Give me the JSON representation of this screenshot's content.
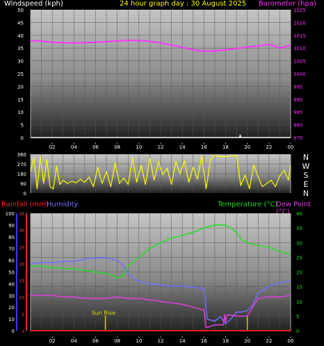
{
  "header": {
    "wind_label": "Windspeed (kph)",
    "title": "24 hour graph day : 30 August 2025",
    "baro_label": "Barometer (hpa)"
  },
  "colors": {
    "wind_label": "#ffffff",
    "title": "#ffff00",
    "baro": "#ff33ff",
    "direction": "#ffff00",
    "rain": "#ff2020",
    "humidity": "#7070ff",
    "temperature": "#22dd22",
    "dewpoint": "#e040e0",
    "sunrise": "#cccc00",
    "sunrise_label": "#dddd00"
  },
  "x_ticks": [
    "02",
    "04",
    "06",
    "08",
    "10",
    "12",
    "14",
    "16",
    "18",
    "20",
    "22",
    "00"
  ],
  "panel1": {
    "wind_ticks": [
      0,
      5,
      10,
      15,
      20,
      25,
      30,
      35,
      40,
      45,
      50
    ],
    "baro_ticks": [
      975,
      980,
      985,
      990,
      995,
      1000,
      1005,
      1010,
      1015,
      1020,
      1025
    ]
  },
  "panel2": {
    "dir_ticks": [
      0,
      90,
      180,
      270,
      360
    ],
    "compass": [
      "N",
      "W",
      "S",
      "E",
      "N"
    ]
  },
  "panel3": {
    "labels": {
      "rain": "Rainfall (mm)",
      "humidity": "Humidity",
      "temperature": "Temperature (°C)",
      "dewpoint": "Dew Point (°C)"
    },
    "hum_ticks": [
      0,
      10,
      20,
      30,
      40,
      50,
      60,
      70,
      80,
      90,
      100
    ],
    "rain_ticks": [
      0,
      5,
      10,
      15,
      20,
      25,
      30,
      35
    ],
    "temp_ticks": [
      0,
      5,
      10,
      15,
      20,
      25,
      30,
      35,
      40
    ],
    "sunrise_label": "Sun Rise"
  },
  "chart_data": [
    {
      "type": "line",
      "title": "24 hour graph day : 30 August 2025",
      "x_unit": "hour of day",
      "y_left_label": "Windspeed (kph)",
      "y_left_range": [
        0,
        50
      ],
      "y_right_label": "Barometer (hpa)",
      "y_right_range": [
        975,
        1025
      ],
      "series": [
        {
          "name": "Barometer (hpa)",
          "axis": "right",
          "x": [
            0,
            1,
            2,
            3,
            4,
            5,
            6,
            7,
            8,
            9,
            10,
            11,
            12,
            13,
            14,
            15,
            16,
            17,
            18,
            19,
            20,
            21,
            22,
            22.5,
            23,
            24
          ],
          "values": [
            1013,
            1012.7,
            1012.3,
            1012.1,
            1012,
            1012.1,
            1012.3,
            1012.5,
            1012.8,
            1013,
            1013,
            1012.6,
            1012,
            1011.2,
            1010.3,
            1009.3,
            1008.8,
            1008.8,
            1009.3,
            1009.8,
            1010.4,
            1010.8,
            1011.5,
            1010.8,
            1010,
            1011
          ]
        },
        {
          "name": "Windspeed (kph)",
          "axis": "left",
          "x": [
            0,
            19.3,
            19.35,
            19.4,
            24
          ],
          "values": [
            0,
            0,
            1,
            0,
            0
          ]
        }
      ]
    },
    {
      "type": "line",
      "x_unit": "hour of day",
      "y_range": [
        0,
        360
      ],
      "y_ticks": [
        0,
        90,
        180,
        270,
        360
      ],
      "compass_labels": [
        "N",
        "W",
        "S",
        "E",
        "N"
      ],
      "series": [
        {
          "name": "Wind direction",
          "x": [
            0,
            0.3,
            0.6,
            0.9,
            1.2,
            1.5,
            1.8,
            2.1,
            2.4,
            2.7,
            3,
            3.4,
            3.8,
            4.2,
            4.6,
            5,
            5.4,
            5.8,
            6.2,
            6.6,
            7,
            7.4,
            7.8,
            8.2,
            8.6,
            9,
            9.4,
            9.8,
            10.2,
            10.6,
            11,
            11.4,
            11.8,
            12.2,
            12.6,
            13,
            13.4,
            13.8,
            14.2,
            14.6,
            15,
            15.4,
            15.8,
            16.2,
            16.6,
            17,
            17.4,
            17.8,
            18.2,
            18.6,
            19,
            19.4,
            19.8,
            20.2,
            20.6,
            21,
            21.4,
            21.8,
            22.2,
            22.6,
            23,
            23.4,
            23.8,
            24
          ],
          "values": [
            200,
            330,
            40,
            340,
            90,
            310,
            60,
            40,
            250,
            80,
            120,
            90,
            110,
            95,
            130,
            100,
            150,
            60,
            240,
            90,
            200,
            60,
            280,
            90,
            140,
            80,
            330,
            100,
            260,
            80,
            320,
            120,
            290,
            170,
            230,
            80,
            290,
            180,
            300,
            100,
            240,
            130,
            350,
            40,
            310,
            350,
            340,
            335,
            340,
            345,
            350,
            70,
            170,
            40,
            260,
            150,
            60,
            90,
            120,
            60,
            160,
            210,
            120,
            260
          ]
        }
      ]
    },
    {
      "type": "line",
      "x_unit": "hour of day",
      "y_left_label": "Humidity",
      "y_left_range": [
        0,
        100
      ],
      "y_rain_label": "Rainfall (mm)",
      "y_rain_range": [
        0,
        35
      ],
      "y_right_label": "Temperature (°C)",
      "y_right_range": [
        0,
        40
      ],
      "annotations": [
        {
          "label": "Sun Rise",
          "x": 6.9
        }
      ],
      "series": [
        {
          "name": "Humidity",
          "axis": "left",
          "x": [
            0,
            1,
            2,
            3,
            4,
            5,
            6,
            7,
            8,
            8.5,
            9,
            9.5,
            10,
            11,
            12,
            13,
            14,
            15,
            16,
            16.3,
            17,
            17.5,
            18,
            18.5,
            19,
            19.5,
            20,
            20.5,
            21,
            22,
            23,
            24
          ],
          "values": [
            57,
            58,
            58,
            59,
            59,
            61,
            62,
            62,
            60,
            56,
            49,
            45,
            42,
            40,
            39,
            38,
            38,
            37,
            36,
            10,
            8,
            12,
            6,
            10,
            16,
            16,
            17,
            22,
            32,
            38,
            41,
            42
          ]
        },
        {
          "name": "Temperature (°C)",
          "axis": "right",
          "x": [
            0,
            1,
            2,
            3,
            4,
            5,
            6,
            7,
            7.5,
            8,
            8.5,
            9,
            10,
            11,
            12,
            13,
            14,
            15,
            16,
            17,
            18,
            18.5,
            19,
            19.5,
            20,
            21,
            22,
            23,
            24
          ],
          "values": [
            22,
            22,
            21.5,
            21.2,
            21,
            20.5,
            20,
            19.5,
            19,
            18,
            18.5,
            22,
            25,
            28,
            30,
            31.5,
            32.5,
            33.5,
            35,
            36,
            36,
            35,
            33.5,
            31,
            30,
            29,
            28.5,
            27,
            26
          ]
        },
        {
          "name": "Dew Point (°C)",
          "axis": "right",
          "x": [
            0,
            1,
            2,
            3,
            4,
            5,
            6,
            7,
            8,
            9,
            10,
            11,
            12,
            13,
            14,
            15,
            16,
            16.1,
            16.2,
            17,
            17.8,
            17.9,
            18,
            18.1,
            18.2,
            19,
            20,
            21,
            22,
            23,
            24
          ],
          "values": [
            12,
            12,
            12,
            11.5,
            11.5,
            11,
            11,
            11,
            11.5,
            11,
            11,
            10.5,
            10,
            9.5,
            9,
            8,
            7,
            4.5,
            1,
            2,
            2,
            5.5,
            3,
            5,
            5.5,
            5,
            5,
            11,
            11.5,
            11.5,
            12
          ]
        },
        {
          "name": "Rainfall (mm)",
          "axis": "rain",
          "x": [
            0,
            24
          ],
          "values": [
            0,
            0
          ]
        }
      ]
    }
  ]
}
